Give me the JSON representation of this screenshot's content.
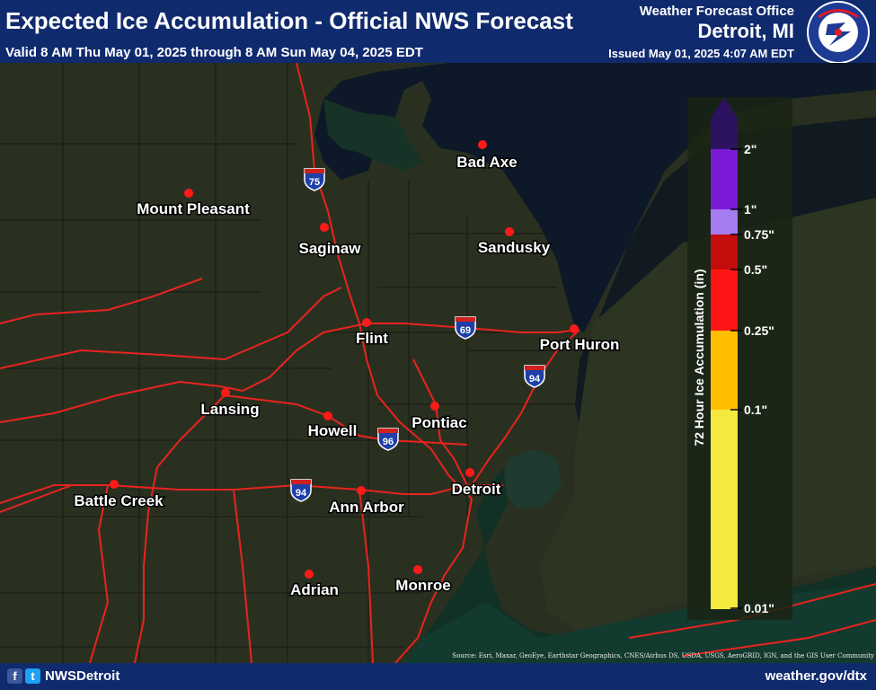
{
  "header": {
    "title": "Expected Ice Accumulation - Official NWS Forecast",
    "valid": "Valid 8 AM Thu May 01, 2025 through 8 AM Sun May 04, 2025 EDT",
    "office": "Weather Forecast Office",
    "city": "Detroit, MI",
    "issued": "Issued May 01, 2025 4:07 AM EDT"
  },
  "logo": {
    "text": "NATIONAL WEATHER SERVICE",
    "colors": {
      "ring": "#1e3c96",
      "center": "#ffffff",
      "emblem": "#e21b23"
    }
  },
  "colors": {
    "city_dot": "#ff1a1a",
    "highway": "#e8231f",
    "lake": "#0d1828",
    "land": "#2a3020",
    "legend_bg": "#1a2414"
  },
  "cities": [
    {
      "name": "Bad Axe"
    },
    {
      "name": "Mount Pleasant"
    },
    {
      "name": "Saginaw"
    },
    {
      "name": "Sandusky"
    },
    {
      "name": "Flint"
    },
    {
      "name": "Port Huron"
    },
    {
      "name": "Lansing"
    },
    {
      "name": "Howell"
    },
    {
      "name": "Pontiac"
    },
    {
      "name": "Battle Creek"
    },
    {
      "name": "Ann Arbor"
    },
    {
      "name": "Detroit"
    },
    {
      "name": "Adrian"
    },
    {
      "name": "Monroe"
    }
  ],
  "interstates": [
    "75",
    "69",
    "94",
    "96",
    "94"
  ],
  "legend": {
    "title": "72 Hour Ice Accumulation (in)",
    "breaks": [
      {
        "label": "2\"",
        "color": "#2d1260"
      },
      {
        "label": "1\"",
        "color": "#7b1ad6"
      },
      {
        "label": "0.75\"",
        "color": "#a37cf2"
      },
      {
        "label": "0.5\"",
        "color": "#c40d0d"
      },
      {
        "label": "0.25\"",
        "color": "#ff1515"
      },
      {
        "label": "0.1\"",
        "color": "#ffbf00"
      },
      {
        "label": "0.01\"",
        "color": "#f5e93e"
      }
    ]
  },
  "source": "Source: Esri, Maxar, GeoEye, Earthstar Geographics, CNES/Airbus DS, USDA, USGS, AeroGRID, IGN, and the GIS User Community",
  "footer": {
    "handle": "NWSDetroit",
    "website": "weather.gov/dtx",
    "facebook_icon": "f",
    "twitter_icon": "t"
  }
}
